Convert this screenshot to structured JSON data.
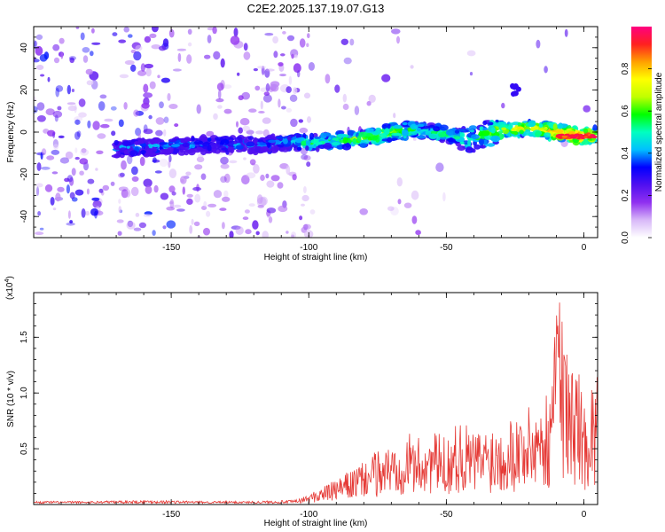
{
  "title": "C2E2.2025.137.19.07.G13",
  "chart_data": [
    {
      "type": "heatmap",
      "title": "C2E2.2025.137.19.07.G13",
      "xlabel": "Height of straight line (km)",
      "ylabel": "Frequency (Hz)",
      "xlim": [
        -200,
        5
      ],
      "ylim": [
        -50,
        50
      ],
      "x_ticks": [
        -150,
        -100,
        -50,
        0
      ],
      "y_ticks": [
        -40,
        -20,
        0,
        20,
        40
      ],
      "colorbar": {
        "label": "Normalized spectral amplitude",
        "range": [
          0.0,
          1.0
        ],
        "ticks": [
          "0.0",
          "0.2",
          "0.4",
          "0.6",
          "0.8"
        ],
        "colors": [
          "#ffffff",
          "#d8b8f8",
          "#9030f0",
          "#5010f0",
          "#0000ff",
          "#00c0ff",
          "#00ffc0",
          "#00ff00",
          "#c0ff00",
          "#ffff00",
          "#ffa000",
          "#ff2020",
          "#ff0080"
        ]
      },
      "ridge": {
        "description_free": true,
        "x": [
          -170,
          -160,
          -150,
          -140,
          -130,
          -120,
          -110,
          -100,
          -90,
          -80,
          -70,
          -60,
          -50,
          -40,
          -30,
          -20,
          -10,
          0,
          5
        ],
        "y": [
          -8,
          -7,
          -7,
          -6,
          -6,
          -6,
          -5,
          -5,
          -4,
          -3,
          0,
          1,
          -1,
          -3,
          1,
          2,
          0,
          -2,
          -1
        ],
        "amplitude": [
          0.35,
          0.35,
          0.4,
          0.35,
          0.35,
          0.35,
          0.4,
          0.5,
          0.55,
          0.6,
          0.65,
          0.5,
          0.55,
          0.5,
          0.65,
          0.7,
          0.8,
          0.95,
          0.7
        ]
      }
    },
    {
      "type": "line",
      "xlabel": "Height of straight line (km)",
      "ylabel": "SNR (10 * v/v)",
      "y_scale_label": "(x10",
      "y_scale_exp": "4",
      "y_scale_close": ")",
      "xlim": [
        -200,
        5
      ],
      "ylim": [
        0,
        1.9
      ],
      "x_ticks": [
        -150,
        -100,
        -50,
        0
      ],
      "y_ticks": [
        "0.5",
        "1.0",
        "1.5"
      ],
      "y_tick_values": [
        0.5,
        1.0,
        1.5
      ],
      "line_color": "#e53935",
      "envelope": {
        "x": [
          -200,
          -180,
          -160,
          -140,
          -120,
          -105,
          -100,
          -95,
          -90,
          -85,
          -80,
          -75,
          -70,
          -65,
          -60,
          -55,
          -50,
          -45,
          -40,
          -35,
          -30,
          -25,
          -20,
          -15,
          -12,
          -10,
          -5,
          -2,
          0,
          2,
          5
        ],
        "y": [
          0.02,
          0.02,
          0.03,
          0.02,
          0.02,
          0.03,
          0.08,
          0.15,
          0.2,
          0.28,
          0.35,
          0.45,
          0.5,
          0.6,
          0.55,
          0.6,
          0.55,
          0.7,
          0.6,
          0.65,
          0.7,
          0.75,
          0.8,
          0.9,
          0.9,
          1.9,
          1.1,
          1.2,
          0.8,
          1.0,
          1.05
        ]
      }
    }
  ]
}
